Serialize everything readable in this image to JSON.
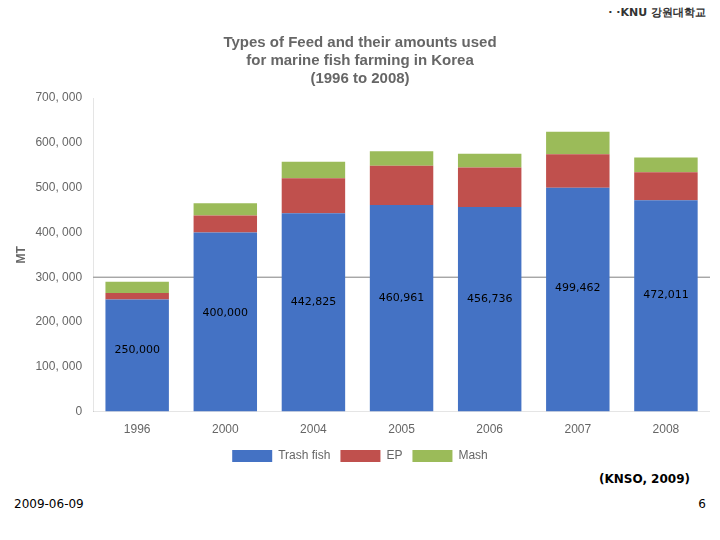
{
  "chart_data": {
    "type": "bar",
    "title": "Types of Feed and their amounts used\nfor marine fish farming in Korea\n(1996 to 2008)",
    "ylabel": "MT",
    "categories": [
      "1996",
      "2000",
      "2004",
      "2005",
      "2006",
      "2007",
      "2008"
    ],
    "series": [
      {
        "name": "Trash fish",
        "color": "#4472C4",
        "values": [
          250000,
          400000,
          442825,
          460961,
          456736,
          499462,
          472011
        ],
        "value_labels": [
          "250,000",
          "400,000",
          "442,825",
          "460,961",
          "456,736",
          "499,462",
          "472,011"
        ]
      },
      {
        "name": "EP",
        "color": "#C0504D",
        "values": [
          15000,
          38000,
          78000,
          88000,
          88000,
          75000,
          62000
        ]
      },
      {
        "name": "Mash",
        "color": "#9BBB59",
        "values": [
          25000,
          27000,
          37000,
          32000,
          31000,
          50000,
          33000
        ]
      }
    ],
    "stacked": true,
    "data_labels": true,
    "ylim": [
      0,
      700000
    ],
    "yticks": [
      0,
      {
        "value": 100000,
        "label": "100, 000"
      },
      {
        "value": 200000,
        "label": "200, 000"
      },
      {
        "value": 300000,
        "label": "300, 000"
      },
      {
        "value": 400000,
        "label": "400, 000"
      },
      {
        "value": 500000,
        "label": "500, 000"
      },
      {
        "value": 600000,
        "label": "600, 000"
      },
      {
        "value": 700000,
        "label": "700, 000"
      }
    ],
    "reference_line": 300000,
    "grid": false,
    "legend": "bottom",
    "annotations": [
      "·",
      "·KNU 강원대학교",
      "(KNSO, 2009)",
      "2009-06-09",
      "6"
    ]
  }
}
